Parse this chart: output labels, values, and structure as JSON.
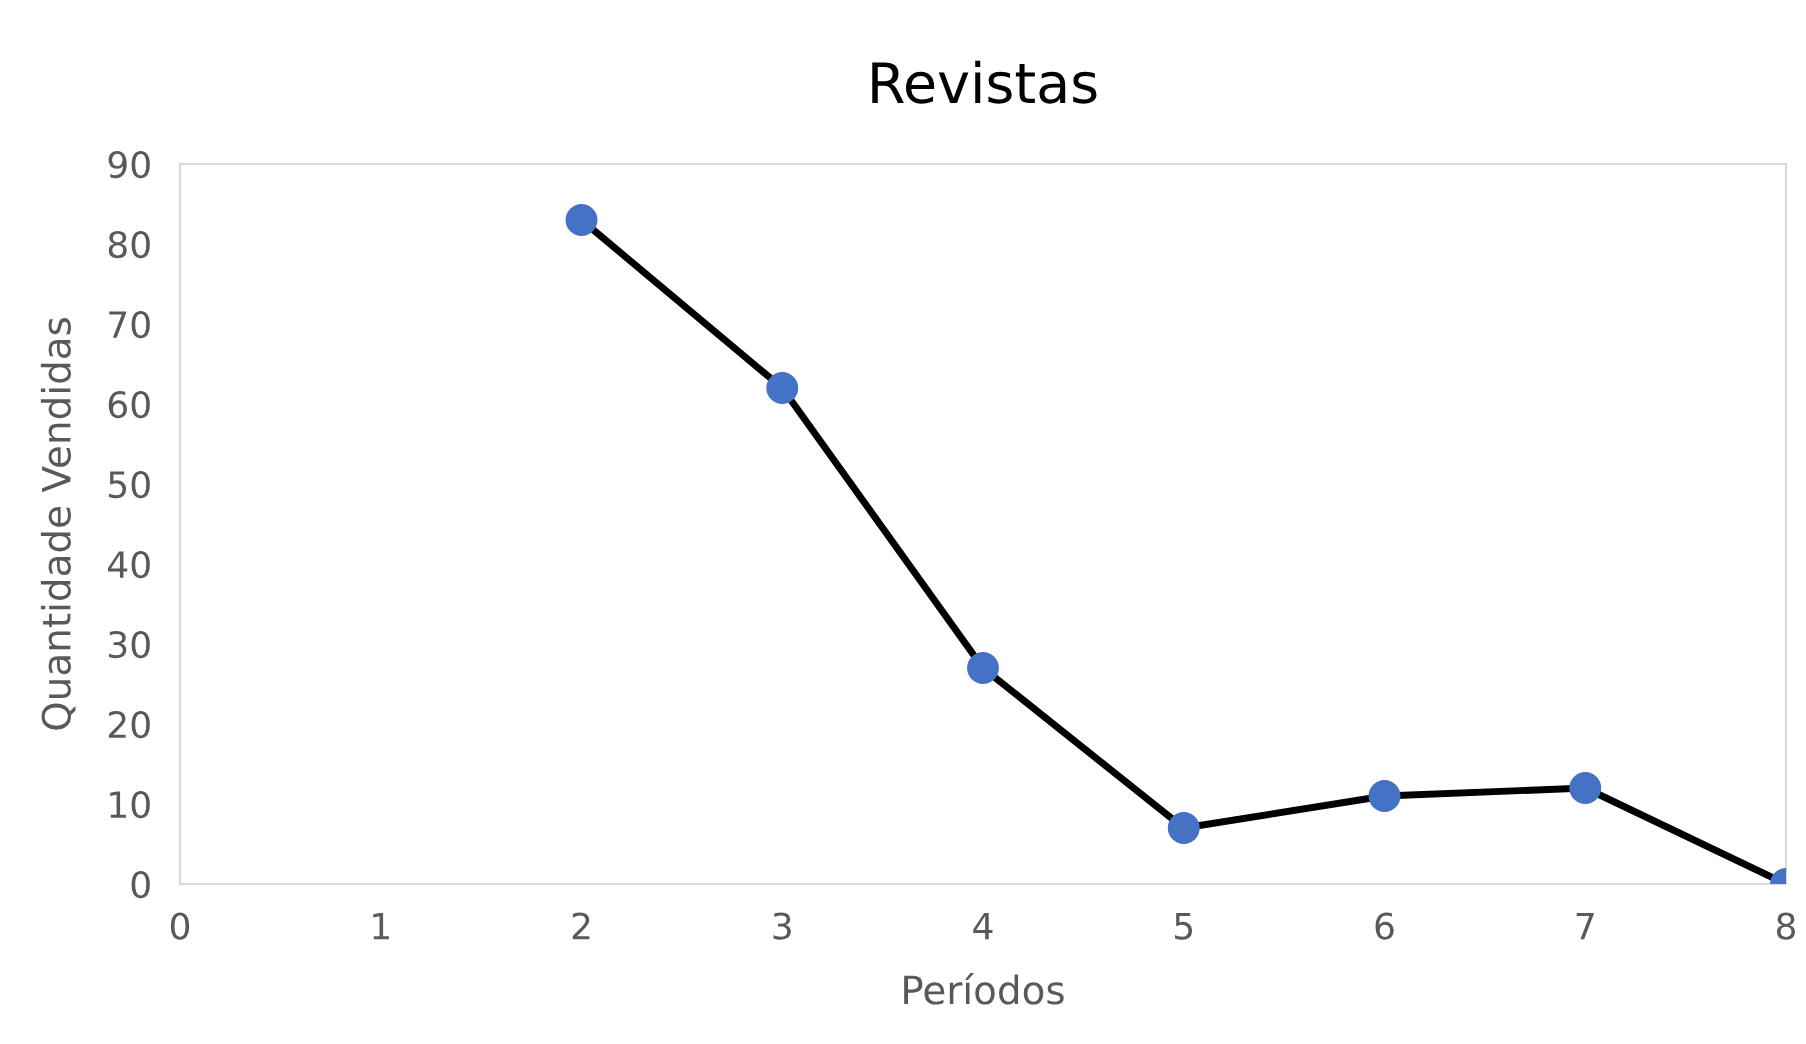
{
  "chart_data": {
    "type": "line",
    "title": "Revistas",
    "xlabel": "Períodos",
    "ylabel": "Quantidade Vendidas",
    "x": [
      2,
      3,
      4,
      5,
      6,
      7,
      8
    ],
    "series": [
      {
        "color": "#000000",
        "colors": [
          "#4472c4",
          "#4472c4",
          "#4472c4",
          "#4472c4",
          "#4472c4",
          "#4472c4",
          "#4472c4"
        ],
        "values": [
          83,
          62,
          27,
          7,
          11,
          12,
          0
        ]
      }
    ],
    "xlim": [
      0,
      8
    ],
    "ylim": [
      0,
      90
    ],
    "xticks": [
      0,
      1,
      2,
      3,
      4,
      5,
      6,
      7,
      8
    ],
    "yticks": [
      0,
      10,
      20,
      30,
      40,
      50,
      60,
      70,
      80,
      90
    ],
    "marker": "circle",
    "line_style": "solid",
    "grid": false,
    "legend": false
  }
}
